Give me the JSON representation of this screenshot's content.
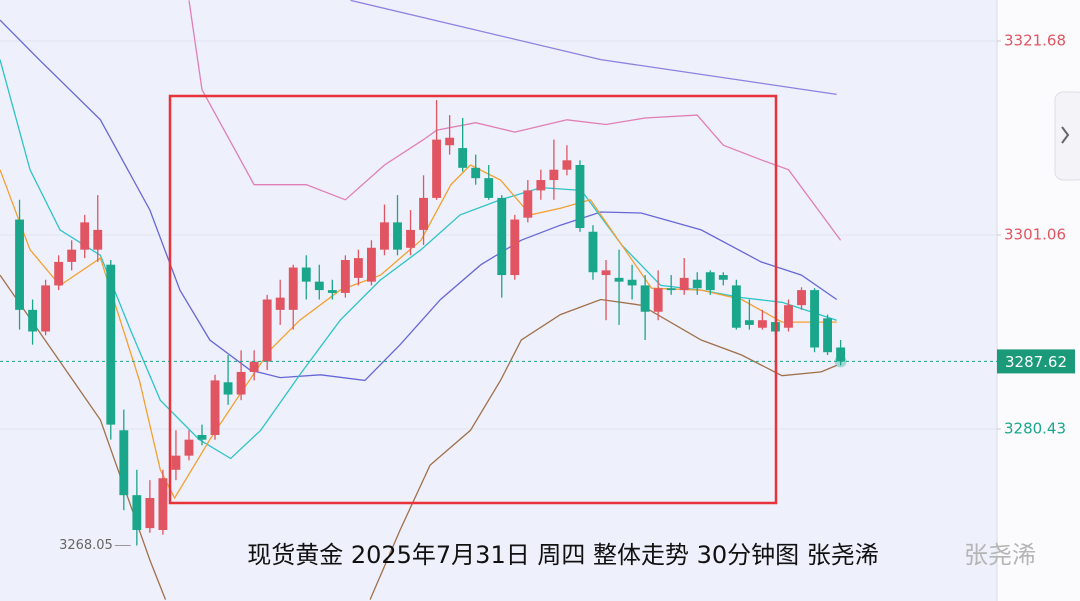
{
  "chart_data": {
    "type": "candlestick",
    "caption": "现货黄金 2025年7月31日 周四 整体走势 30分钟图 张尧浠",
    "watermark": "张尧浠",
    "up_color": "#e05561",
    "down_color": "#1aa68a",
    "ylim": [
      3262.15,
      3326.04
    ],
    "yticks": [
      3321.68,
      3301.06,
      3280.43
    ],
    "xlim": [
      -1.5,
      75
    ],
    "grid": true,
    "current_price": 3287.62,
    "low_label": 3268.05,
    "open": [
      3302.7,
      3293.1,
      3290.8,
      3295.7,
      3298.2,
      3299.5,
      3299.5,
      3297.9,
      3280.3,
      3273.4,
      3269.9,
      3269.7,
      3276.1,
      3277.6,
      3279.8,
      3279.8,
      3285.4,
      3284.1,
      3286.5,
      3287.6,
      3293.1,
      3293.1,
      3297.6,
      3296.1,
      3295.2,
      3294.9,
      3296.5,
      3296.1,
      3299.5,
      3302.4,
      3299.7,
      3301.6,
      3305.0,
      3310.6,
      3310.3,
      3308.2,
      3307.1,
      3305.0,
      3296.8,
      3302.9,
      3305.8,
      3306.9,
      3308.0,
      3308.5,
      3301.4,
      3296.8,
      3296.5,
      3296.3,
      3295.7,
      3292.9,
      3295.4,
      3295.2,
      3296.3,
      3297.1,
      3296.8,
      3295.7,
      3292.0,
      3291.2,
      3291.8,
      3291.2,
      3293.6,
      3295.2,
      3292.2,
      3289.1
    ],
    "high": [
      3304.8,
      3294.2,
      3296.3,
      3298.9,
      3300.5,
      3303.2,
      3305.3,
      3298.4,
      3282.5,
      3276.1,
      3275.0,
      3276.1,
      3280.3,
      3280.3,
      3280.9,
      3286.2,
      3288.3,
      3288.8,
      3288.8,
      3294.7,
      3296.3,
      3297.9,
      3298.9,
      3297.9,
      3296.3,
      3298.9,
      3299.5,
      3300.5,
      3304.3,
      3305.3,
      3303.7,
      3307.4,
      3315.4,
      3313.8,
      3313.5,
      3309.6,
      3308.5,
      3305.3,
      3303.2,
      3306.9,
      3308.0,
      3311.2,
      3310.6,
      3309.0,
      3302.1,
      3298.4,
      3299.5,
      3297.9,
      3296.8,
      3297.3,
      3296.8,
      3298.6,
      3297.1,
      3297.3,
      3297.1,
      3296.3,
      3294.2,
      3293.1,
      3293.1,
      3294.2,
      3295.5,
      3295.4,
      3292.6,
      3289.9
    ],
    "low": [
      3291.0,
      3289.4,
      3290.4,
      3295.2,
      3297.3,
      3298.6,
      3298.2,
      3279.3,
      3271.8,
      3268.05,
      3269.4,
      3269.2,
      3275.0,
      3277.1,
      3278.7,
      3279.3,
      3283.0,
      3283.5,
      3285.6,
      3286.7,
      3291.5,
      3291.0,
      3294.2,
      3294.2,
      3294.2,
      3294.4,
      3295.7,
      3295.7,
      3298.9,
      3298.9,
      3298.9,
      3300.0,
      3304.8,
      3309.6,
      3307.8,
      3306.4,
      3304.8,
      3294.4,
      3296.3,
      3302.4,
      3304.8,
      3304.8,
      3307.4,
      3301.4,
      3296.3,
      3292.0,
      3291.5,
      3294.2,
      3289.9,
      3292.0,
      3294.7,
      3294.7,
      3294.7,
      3294.7,
      3295.7,
      3291.0,
      3291.0,
      3291.0,
      3290.4,
      3290.8,
      3293.1,
      3288.6,
      3288.3,
      3287.2
    ],
    "close": [
      3293.1,
      3290.8,
      3295.7,
      3298.2,
      3299.5,
      3302.4,
      3301.6,
      3280.9,
      3273.4,
      3269.7,
      3273.1,
      3275.2,
      3277.6,
      3279.3,
      3279.3,
      3285.6,
      3284.1,
      3286.5,
      3287.6,
      3294.2,
      3294.4,
      3297.6,
      3296.1,
      3295.2,
      3294.9,
      3298.4,
      3298.6,
      3299.7,
      3302.4,
      3299.5,
      3301.6,
      3305.0,
      3311.2,
      3311.4,
      3308.2,
      3307.1,
      3305.0,
      3296.8,
      3302.7,
      3305.8,
      3306.9,
      3308.0,
      3309.0,
      3301.8,
      3297.1,
      3297.3,
      3296.1,
      3295.7,
      3292.9,
      3295.4,
      3295.2,
      3296.5,
      3295.4,
      3295.2,
      3296.3,
      3291.2,
      3291.5,
      3292.0,
      3290.8,
      3293.6,
      3295.2,
      3289.1,
      3288.6,
      3287.62
    ],
    "lines": [
      {
        "color": "#e07fb6",
        "x": [
          13,
          14,
          18,
          22,
          25,
          28,
          31,
          32,
          35,
          38,
          42,
          45,
          48,
          52,
          54,
          57,
          59,
          63
        ],
        "values": [
          3326.0,
          3316.5,
          3306.4,
          3306.4,
          3304.8,
          3308.5,
          3311.2,
          3312.2,
          3313.0,
          3312.0,
          3313.3,
          3312.8,
          3313.5,
          3313.8,
          3310.6,
          3309.0,
          3308.0,
          3300.5
        ]
      },
      {
        "color": "#6767d6",
        "x": [
          -1.5,
          1.5,
          6.2,
          10,
          12.3,
          14.6,
          17.7,
          20,
          23.1,
          26.5,
          29.2,
          32.3,
          35.4,
          38.5,
          41.5,
          44.6,
          47.7,
          52.3,
          56.9,
          60,
          62.7
        ],
        "values": [
          3323.9,
          3319.7,
          3313.3,
          3303.7,
          3295.2,
          3289.9,
          3286.7,
          3285.9,
          3286.2,
          3285.6,
          3289.4,
          3294.2,
          3297.9,
          3300.5,
          3302.1,
          3303.5,
          3303.4,
          3301.6,
          3298.2,
          3296.8,
          3294.2
        ]
      },
      {
        "color": "#a0704a",
        "x": [
          -1.5,
          6.2,
          10,
          11.2,
          19,
          26.9,
          29.2,
          31.5,
          34.6,
          36.9,
          38.5,
          41.5,
          44.6,
          47.7,
          52.3,
          55.4,
          58.5,
          61.5,
          62.7
        ],
        "values": [
          3296.8,
          3281.4,
          3266.5,
          3262.3,
          null,
          3262.3,
          3269.7,
          3276.6,
          3280.3,
          3285.6,
          3289.9,
          3292.6,
          3294.2,
          3293.6,
          3289.9,
          3288.3,
          3286.1,
          3286.5,
          3287.2
        ]
      },
      {
        "color": "#2ec4c8",
        "x": [
          -1.5,
          0.8,
          3.1,
          6.2,
          8.5,
          10.8,
          13.8,
          16.2,
          18.5,
          21.5,
          24.6,
          27.7,
          30.8,
          33.8,
          36.9,
          40,
          43.1,
          46.2,
          49.2,
          52.3,
          55.4,
          58.5,
          62.7
        ],
        "values": [
          3319.7,
          3308.0,
          3301.6,
          3298.9,
          3291.0,
          3283.5,
          3279.3,
          3277.3,
          3280.3,
          3286.2,
          3292.0,
          3296.3,
          3299.5,
          3303.2,
          3304.8,
          3306.1,
          3305.8,
          3300.0,
          3295.7,
          3295.2,
          3294.4,
          3293.9,
          3292.0
        ]
      },
      {
        "color": "#f5a030",
        "x": [
          -1.5,
          0.8,
          3.1,
          6.2,
          9.2,
          10.8,
          11.9,
          14.6,
          16.9,
          19.2,
          21.5,
          24.6,
          27.7,
          30.8,
          33.1,
          34.6,
          36.9,
          39.2,
          41.5,
          43.8,
          46.2,
          48.5,
          52.3,
          55.4,
          58.5,
          62.7
        ],
        "values": [
          3308.0,
          3299.5,
          3295.7,
          3298.6,
          3285.6,
          3276.1,
          3273.1,
          3279.3,
          3284.1,
          3288.8,
          3292.0,
          3295.2,
          3296.8,
          3300.5,
          3306.4,
          3308.5,
          3306.9,
          3303.2,
          3303.9,
          3304.8,
          3300.0,
          3295.4,
          3295.2,
          3294.2,
          3291.8,
          3291.8
        ]
      },
      {
        "color": "#8a82e0",
        "x": [
          25.4,
          44.6,
          62.7
        ],
        "values": [
          3326.0,
          3319.7,
          3316.0
        ]
      }
    ]
  }
}
